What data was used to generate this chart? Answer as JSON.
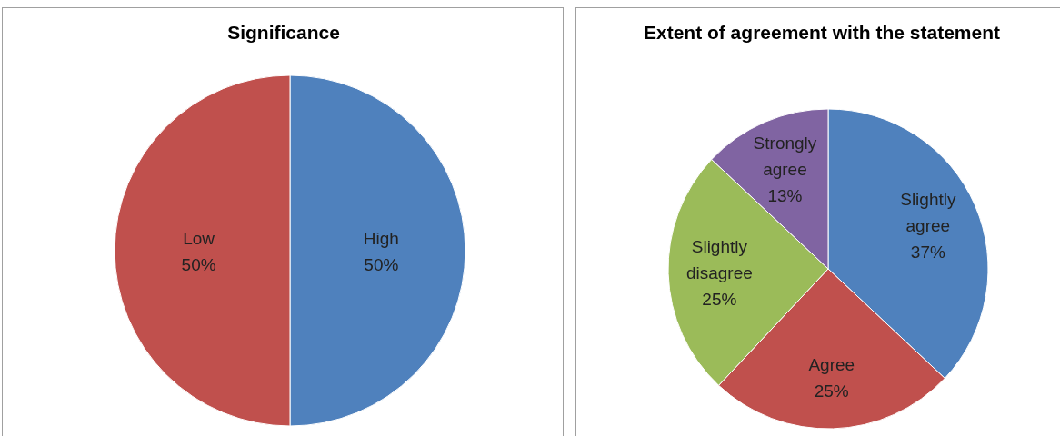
{
  "chart_data": [
    {
      "type": "pie",
      "title": "Significance",
      "categories": [
        "High",
        "Low"
      ],
      "values": [
        50,
        50
      ],
      "colors": [
        "#4f81bd",
        "#c0504d"
      ],
      "value_labels": [
        "50%",
        "50%"
      ],
      "legend": false
    },
    {
      "type": "pie",
      "title": "Extent of agreement with the statement",
      "categories": [
        "Slightly agree",
        "Agree",
        "Slightly disagree",
        "Strongly agree"
      ],
      "values": [
        37,
        25,
        25,
        13
      ],
      "colors": [
        "#4f81bd",
        "#c0504d",
        "#9bbb59",
        "#8064a2"
      ],
      "value_labels": [
        "37%",
        "25%",
        "25%",
        "13%"
      ],
      "legend": false
    }
  ]
}
